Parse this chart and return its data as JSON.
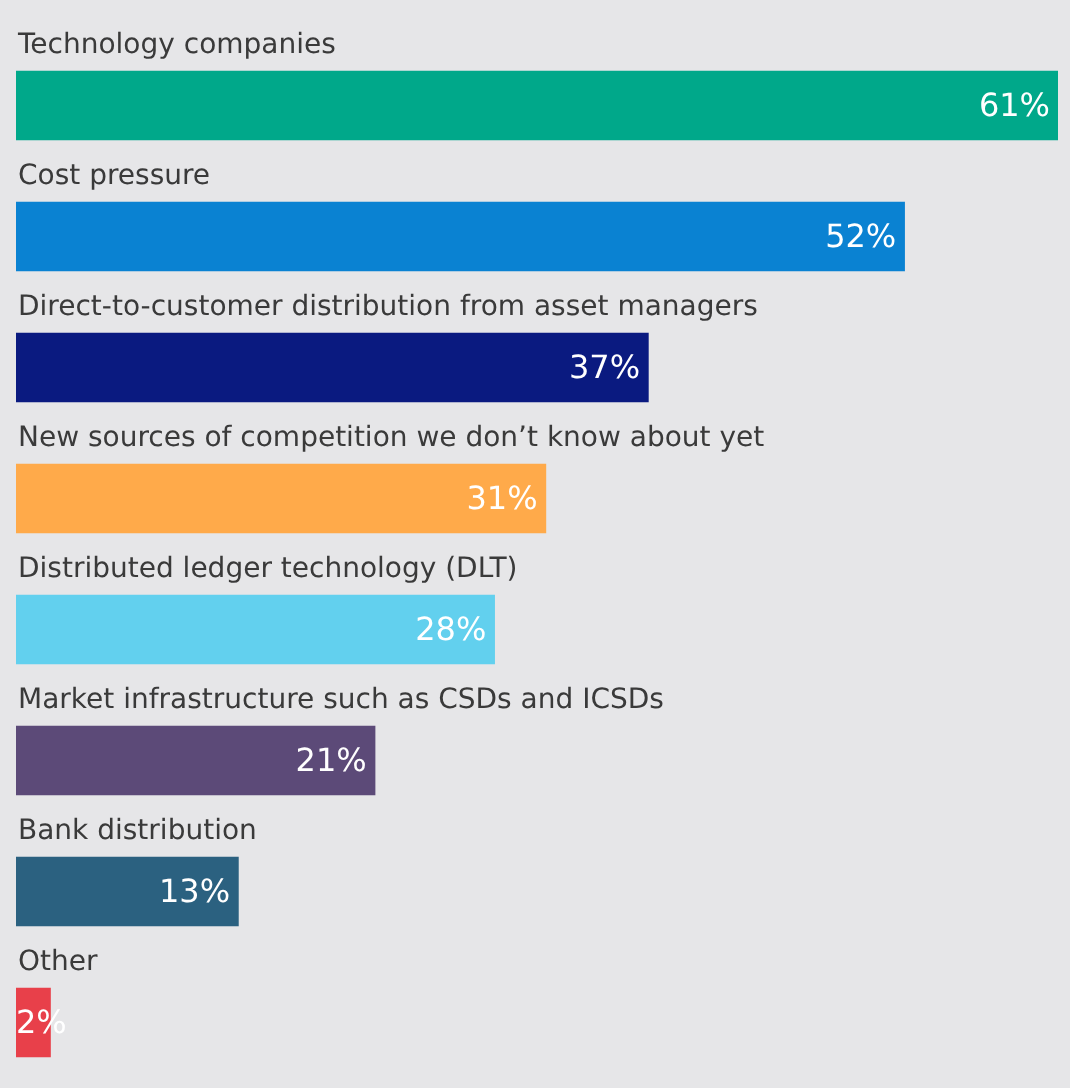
{
  "chart_data": {
    "type": "bar",
    "orientation": "horizontal",
    "categories": [
      "Technology companies",
      "Cost pressure",
      "Direct-to-customer distribution from asset managers",
      "New sources of competition we don’t know about yet",
      "Distributed ledger technology (DLT)",
      "Market infrastructure such as CSDs and ICSDs",
      "Bank distribution",
      "Other"
    ],
    "values": [
      61,
      52,
      37,
      31,
      28,
      21,
      13,
      2
    ],
    "colors": [
      "#00a88a",
      "#0a82d2",
      "#0a1a80",
      "#ffaa4a",
      "#62d0ee",
      "#5c4a78",
      "#2b6180",
      "#e8404a"
    ],
    "value_labels": [
      "61%",
      "52%",
      "37%",
      "31%",
      "28%",
      "21%",
      "13%",
      "2%"
    ],
    "xlim": [
      0,
      61
    ],
    "legend": false
  }
}
